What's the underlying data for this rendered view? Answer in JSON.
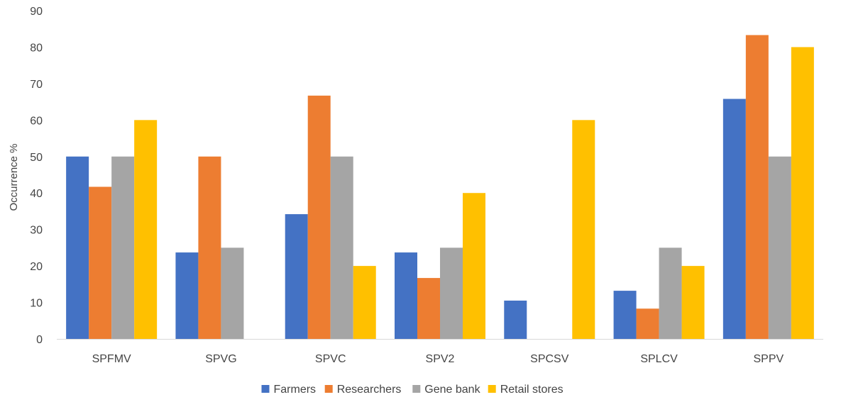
{
  "chart_data": {
    "type": "bar",
    "title": "",
    "xlabel": "",
    "ylabel": "Occurrence %",
    "ylim": [
      0,
      90
    ],
    "yticks": [
      "0",
      "10",
      "20",
      "30",
      "40",
      "50",
      "60",
      "70",
      "80",
      "90"
    ],
    "grid": false,
    "legend_position": "bottom",
    "categories": [
      "SPFMV",
      "SPVG",
      "SPVC",
      "SPV2",
      "SPCSV",
      "SPLCV",
      "SPPV"
    ],
    "series": [
      {
        "name": "Farmers",
        "color": "#4472C4",
        "values": [
          50,
          23.7,
          34.2,
          23.7,
          10.5,
          13.2,
          65.8
        ]
      },
      {
        "name": "Researchers",
        "color": "#ED7D31",
        "values": [
          41.7,
          50,
          66.7,
          16.7,
          0,
          8.3,
          83.3
        ]
      },
      {
        "name": "Gene bank",
        "color": "#A5A5A5",
        "values": [
          50,
          25,
          50,
          25,
          0,
          25,
          50
        ]
      },
      {
        "name": "Retail stores",
        "color": "#FFC000",
        "values": [
          60,
          0,
          20,
          40,
          60,
          20,
          80
        ]
      }
    ]
  }
}
